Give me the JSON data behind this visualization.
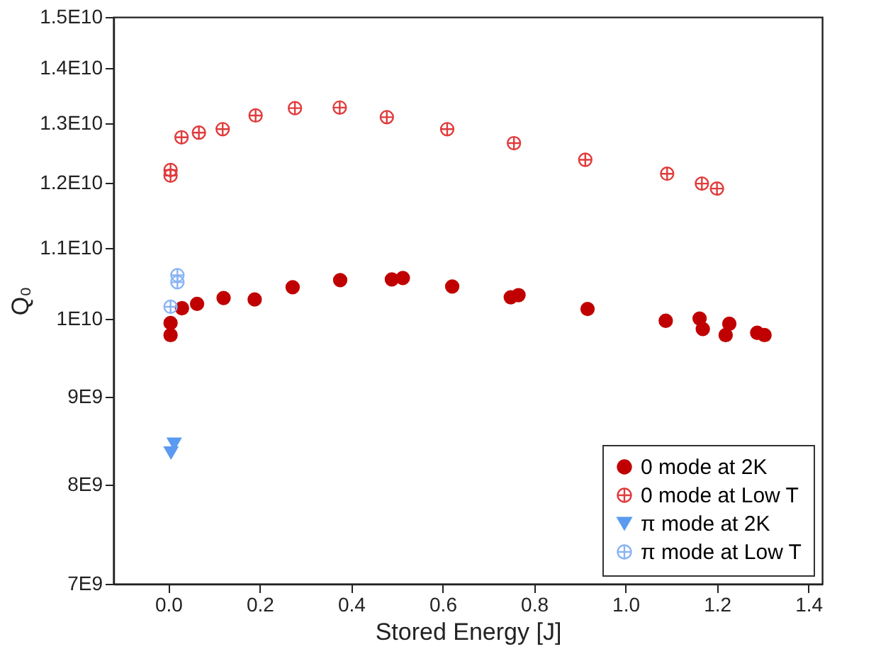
{
  "chart_data": {
    "type": "scatter",
    "xlabel": "Stored Energy [J]",
    "ylabel": "Q₀",
    "log": "y",
    "grid": false,
    "legend": "bottom right",
    "xlim": [
      -0.12,
      1.43
    ],
    "ylim": [
      7000000000.0,
      15000000000.0
    ],
    "xticks": [
      {
        "value": 0,
        "label": "0.0"
      },
      {
        "value": 0.2,
        "label": "0.2"
      },
      {
        "value": 0.4,
        "label": "0.4"
      },
      {
        "value": 0.6,
        "label": "0.6"
      },
      {
        "value": 0.8,
        "label": "0.8"
      },
      {
        "value": 1.0,
        "label": "1.0"
      },
      {
        "value": 1.2,
        "label": "1.2"
      },
      {
        "value": 1.4,
        "label": "1.4"
      }
    ],
    "yticks": [
      {
        "value": 7000000000.0,
        "label": "7E9"
      },
      {
        "value": 8000000000.0,
        "label": "8E9"
      },
      {
        "value": 9000000000.0,
        "label": "9E9"
      },
      {
        "value": 10000000000.0,
        "label": "1E10"
      },
      {
        "value": 11000000000.0,
        "label": "1.1E10"
      },
      {
        "value": 12000000000.0,
        "label": "1.2E10"
      },
      {
        "value": 13000000000.0,
        "label": "1.3E10"
      },
      {
        "value": 14000000000.0,
        "label": "1.4E10"
      },
      {
        "value": 15000000000.0,
        "label": "1.5E10"
      }
    ],
    "series": [
      {
        "name": "0 mode at 2K",
        "color": "#c00000",
        "marker": "circle",
        "x": [
          0.005,
          0.005,
          0.03,
          0.063,
          0.121,
          0.189,
          0.272,
          0.376,
          0.489,
          0.513,
          0.621,
          0.749,
          0.766,
          0.917,
          1.088,
          1.162,
          1.169,
          1.219,
          1.227,
          1.288,
          1.304
        ],
        "values": [
          9940000000.0,
          9780000000.0,
          10140000000.0,
          10200000000.0,
          10280000000.0,
          10260000000.0,
          10430000000.0,
          10530000000.0,
          10540000000.0,
          10560000000.0,
          10440000000.0,
          10290000000.0,
          10320000000.0,
          10130000000.0,
          9970000000.0,
          10000000000.0,
          9860000000.0,
          9780000000.0,
          9930000000.0,
          9810000000.0,
          9780000000.0
        ]
      },
      {
        "name": "0 mode at Low T",
        "color": "#e03c3c",
        "marker": "cross",
        "x": [
          0.005,
          0.005,
          0.029,
          0.067,
          0.119,
          0.191,
          0.277,
          0.375,
          0.478,
          0.61,
          0.756,
          0.912,
          1.091,
          1.167,
          1.2
        ],
        "values": [
          12210000000.0,
          12120000000.0,
          12760000000.0,
          12840000000.0,
          12900000000.0,
          13140000000.0,
          13270000000.0,
          13280000000.0,
          13110000000.0,
          12900000000.0,
          12660000000.0,
          12380000000.0,
          12150000000.0,
          11990000000.0,
          11910000000.0
        ]
      },
      {
        "name": "π mode at 2K",
        "color": "#5a9af0",
        "marker": "triangle",
        "x": [
          0.006,
          0.013
        ],
        "values": [
          8350000000.0,
          8450000000.0
        ]
      },
      {
        "name": "π mode at Low T",
        "color": "#8ab4f4",
        "marker": "cross",
        "x": [
          0.02,
          0.02,
          0.005
        ],
        "values": [
          10600000000.0,
          10500000000.0,
          10160000000.0
        ]
      }
    ]
  }
}
